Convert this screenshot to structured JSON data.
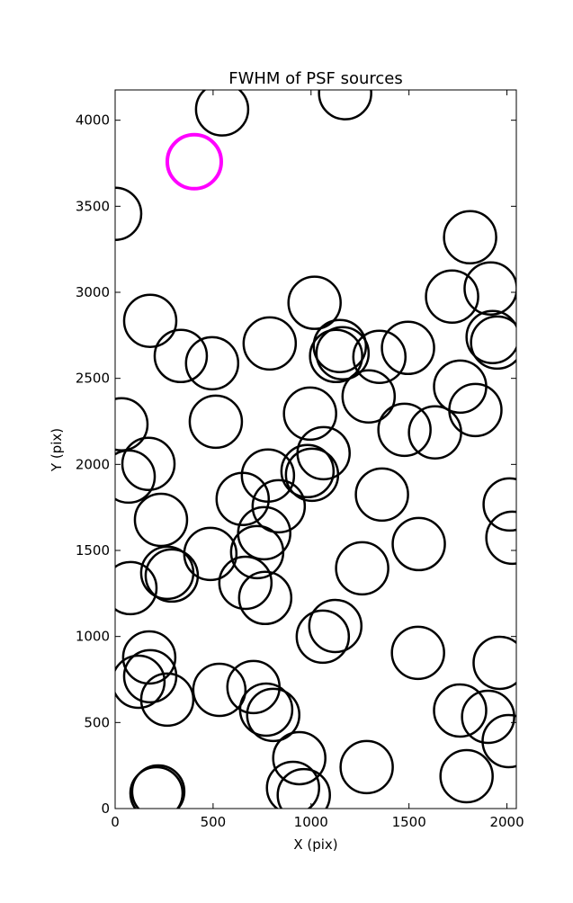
{
  "chart_data": {
    "type": "scatter",
    "title": "FWHM of PSF sources",
    "xlabel": "X (pix)",
    "ylabel": "Y (pix)",
    "xlim": [
      0,
      2048
    ],
    "ylim": [
      0,
      4176
    ],
    "xticks": [
      0,
      500,
      1000,
      1500,
      2000
    ],
    "yticks": [
      0,
      500,
      1000,
      1500,
      2000,
      2500,
      3000,
      3500,
      4000
    ],
    "series": [
      {
        "color": "#000000",
        "x": [
          546,
          1174,
          0,
          1812,
          1917,
          1720,
          179,
          1018,
          1927,
          1950,
          1495,
          789,
          1147,
          1128,
          1161,
          1349,
          335,
          495,
          1294,
          1761,
          1839,
          995,
          32,
          1477,
          1633,
          514,
          1064,
          170,
          69,
          982,
          1005,
          780,
          2014,
          1362,
          651,
          835,
          234,
          761,
          2028,
          1550,
          725,
          486,
          266,
          289,
          1261,
          78,
          665,
          766,
          1124,
          1060,
          1546,
          1963,
          174,
          179,
          119,
          266,
          532,
          706,
          771,
          807,
          1761,
          1904,
          2009,
          940,
          1284,
          908,
          963,
          1794,
          220,
          211
        ],
        "y": [
          4063,
          4157,
          3456,
          3320,
          3022,
          2975,
          2834,
          2939,
          2740,
          2708,
          2677,
          2703,
          2688,
          2630,
          2646,
          2625,
          2630,
          2588,
          2395,
          2452,
          2316,
          2295,
          2233,
          2201,
          2186,
          2248,
          2065,
          2003,
          1929,
          1961,
          1940,
          1935,
          1767,
          1825,
          1799,
          1757,
          1678,
          1600,
          1574,
          1537,
          1490,
          1480,
          1370,
          1354,
          1396,
          1281,
          1312,
          1224,
          1061,
          999,
          905,
          847,
          878,
          769,
          737,
          633,
          690,
          706,
          575,
          544,
          570,
          533,
          392,
          293,
          241,
          120,
          78,
          188,
          99,
          89
        ]
      },
      {
        "color": "#ff00ff",
        "x": [
          404
        ],
        "y": [
          3759
        ]
      }
    ]
  }
}
